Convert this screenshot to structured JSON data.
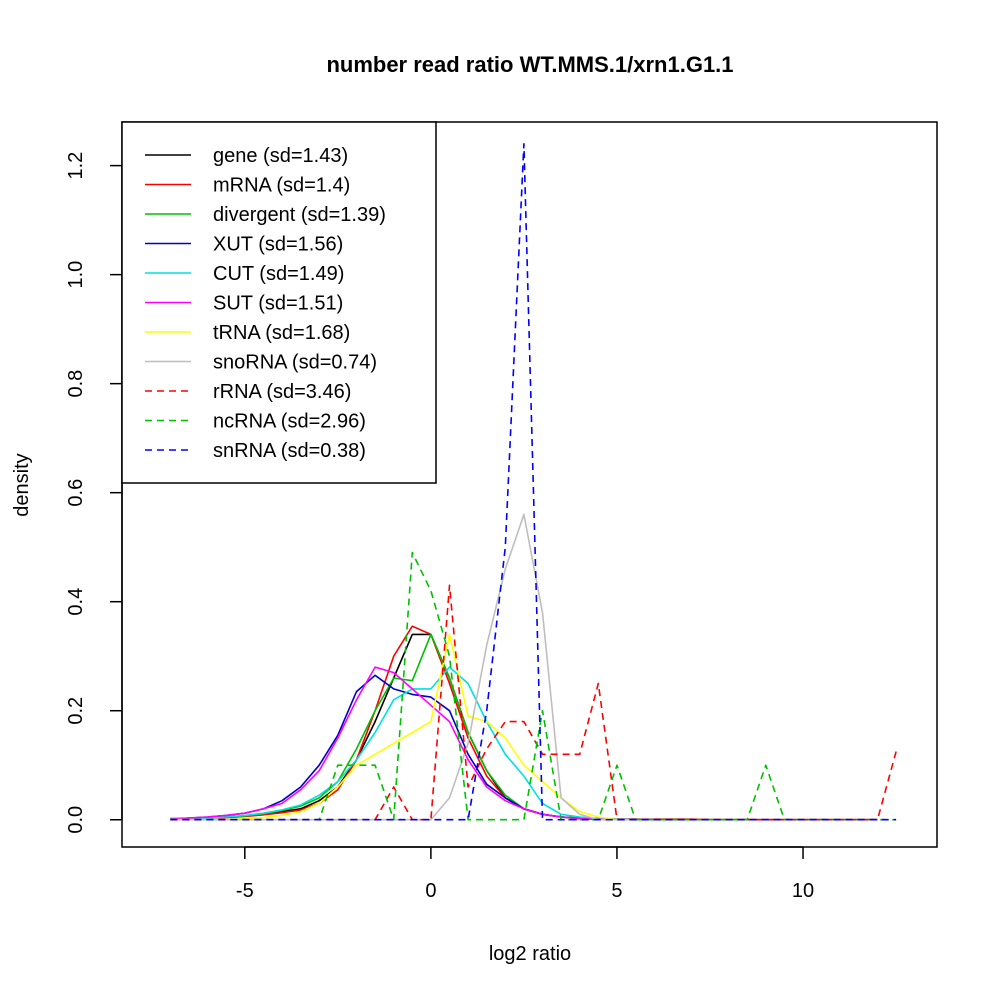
{
  "chart_data": {
    "type": "line",
    "title": "number read ratio WT.MMS.1/xrn1.G1.1",
    "xlabel": "log2 ratio",
    "ylabel": "density",
    "xlim": [
      -8.3,
      13.6
    ],
    "ylim": [
      -0.05,
      1.28
    ],
    "x_ticks": [
      -5,
      0,
      5,
      10
    ],
    "y_ticks": [
      0.0,
      0.2,
      0.4,
      0.6,
      0.8,
      1.0,
      1.2
    ],
    "x_tick_labels": [
      "-5",
      "0",
      "5",
      "10"
    ],
    "y_tick_labels": [
      "0.0",
      "0.2",
      "0.4",
      "0.6",
      "0.8",
      "1.0",
      "1.2"
    ],
    "grid": false,
    "legend_position": "top-left",
    "series": [
      {
        "name": "gene (sd=1.43)",
        "color": "#000000",
        "dash": "solid",
        "x": [
          -7,
          -6.5,
          -6,
          -5.5,
          -5,
          -4.5,
          -4,
          -3.5,
          -3,
          -2.5,
          -2,
          -1.5,
          -1,
          -0.5,
          0,
          0.5,
          1,
          1.5,
          2,
          2.5,
          3,
          3.5,
          4,
          4.5,
          5,
          5.5,
          6,
          6.5,
          7,
          7.5,
          8,
          8.5,
          9,
          9.5,
          10,
          10.5,
          11,
          11.5,
          12
        ],
        "y": [
          0.002,
          0.002,
          0.003,
          0.005,
          0.007,
          0.01,
          0.015,
          0.02,
          0.035,
          0.06,
          0.11,
          0.18,
          0.26,
          0.34,
          0.34,
          0.26,
          0.16,
          0.09,
          0.04,
          0.02,
          0.01,
          0.005,
          0.003,
          0.002,
          0.001,
          0.001,
          0,
          0,
          0,
          0,
          0,
          0,
          0,
          0,
          0,
          0,
          0,
          0,
          0
        ]
      },
      {
        "name": "mRNA (sd=1.4)",
        "color": "#ff0000",
        "dash": "solid",
        "x": [
          -7,
          -6.5,
          -6,
          -5.5,
          -5,
          -4.5,
          -4,
          -3.5,
          -3,
          -2.5,
          -2,
          -1.5,
          -1,
          -0.5,
          0,
          0.5,
          1,
          1.5,
          2,
          2.5,
          3,
          3.5,
          4,
          4.5,
          5,
          5.5,
          6,
          6.5,
          7,
          7.5,
          8,
          8.5,
          9,
          9.5,
          10,
          10.5,
          11,
          11.5,
          12
        ],
        "y": [
          0.002,
          0.002,
          0.003,
          0.004,
          0.006,
          0.009,
          0.013,
          0.018,
          0.03,
          0.055,
          0.11,
          0.2,
          0.3,
          0.355,
          0.34,
          0.25,
          0.15,
          0.08,
          0.04,
          0.02,
          0.01,
          0.005,
          0.003,
          0.002,
          0.001,
          0.001,
          0.001,
          0.001,
          0.001,
          0,
          0,
          0,
          0,
          0,
          0,
          0,
          0,
          0,
          0
        ]
      },
      {
        "name": "divergent (sd=1.39)",
        "color": "#00c000",
        "dash": "solid",
        "x": [
          -7,
          -6.5,
          -6,
          -5.5,
          -5,
          -4.5,
          -4,
          -3.5,
          -3,
          -2.5,
          -2,
          -1.5,
          -1,
          -0.5,
          0,
          0.5,
          1,
          1.5,
          2,
          2.5,
          3,
          3.5,
          4,
          4.5,
          5,
          5.5,
          6,
          6.5,
          7
        ],
        "y": [
          0.002,
          0.002,
          0.003,
          0.005,
          0.007,
          0.011,
          0.017,
          0.025,
          0.04,
          0.07,
          0.13,
          0.2,
          0.26,
          0.255,
          0.34,
          0.26,
          0.16,
          0.09,
          0.045,
          0.02,
          0.01,
          0.005,
          0.003,
          0.002,
          0.001,
          0,
          0,
          0,
          0
        ]
      },
      {
        "name": "XUT (sd=1.56)",
        "color": "#0000c8",
        "dash": "solid",
        "x": [
          -7,
          -6.5,
          -6,
          -5.5,
          -5,
          -4.5,
          -4,
          -3.5,
          -3,
          -2.5,
          -2,
          -1.5,
          -1,
          -0.5,
          0,
          0.5,
          1,
          1.5,
          2,
          2.5,
          3,
          3.5,
          4,
          4.5,
          5,
          5.5,
          6
        ],
        "y": [
          0.001,
          0.003,
          0.005,
          0.008,
          0.012,
          0.02,
          0.035,
          0.06,
          0.1,
          0.155,
          0.235,
          0.265,
          0.24,
          0.23,
          0.225,
          0.2,
          0.12,
          0.065,
          0.04,
          0.02,
          0.01,
          0.005,
          0.002,
          0.001,
          0,
          0,
          0
        ]
      },
      {
        "name": "CUT (sd=1.49)",
        "color": "#00e0e0",
        "dash": "solid",
        "x": [
          -7,
          -6.5,
          -6,
          -5.5,
          -5,
          -4.5,
          -4,
          -3.5,
          -3,
          -2.5,
          -2,
          -1.5,
          -1,
          -0.5,
          0,
          0.5,
          1,
          1.5,
          2,
          2.5,
          3,
          3.5,
          4,
          4.5,
          5,
          5.5,
          6
        ],
        "y": [
          0.001,
          0.002,
          0.003,
          0.005,
          0.008,
          0.012,
          0.018,
          0.027,
          0.045,
          0.07,
          0.11,
          0.16,
          0.22,
          0.24,
          0.24,
          0.28,
          0.25,
          0.18,
          0.12,
          0.08,
          0.03,
          0.01,
          0.005,
          0.002,
          0.001,
          0,
          0
        ]
      },
      {
        "name": "SUT (sd=1.51)",
        "color": "#ff00ff",
        "dash": "solid",
        "x": [
          -7,
          -6.5,
          -6,
          -5.5,
          -5,
          -4.5,
          -4,
          -3.5,
          -3,
          -2.5,
          -2,
          -1.5,
          -1,
          -0.5,
          0,
          0.5,
          1,
          1.5,
          2,
          2.5,
          3,
          3.5,
          4,
          4.5,
          5,
          5.5,
          6
        ],
        "y": [
          0.001,
          0.003,
          0.005,
          0.008,
          0.012,
          0.02,
          0.03,
          0.055,
          0.09,
          0.15,
          0.22,
          0.28,
          0.27,
          0.24,
          0.21,
          0.18,
          0.11,
          0.06,
          0.035,
          0.02,
          0.01,
          0.005,
          0.002,
          0.001,
          0,
          0,
          0
        ]
      },
      {
        "name": "tRNA (sd=1.68)",
        "color": "#ffff00",
        "dash": "solid",
        "x": [
          -7,
          -6.5,
          -6,
          -5.5,
          -5,
          -4.5,
          -4,
          -3.5,
          -3,
          -2.5,
          -2,
          -1.5,
          -1,
          -0.5,
          0,
          0.5,
          1,
          1.5,
          2,
          2.5,
          3,
          3.5,
          4,
          4.5,
          5
        ],
        "y": [
          0,
          0,
          0,
          0,
          0.002,
          0.004,
          0.008,
          0.015,
          0.03,
          0.06,
          0.1,
          0.12,
          0.14,
          0.16,
          0.18,
          0.34,
          0.19,
          0.18,
          0.15,
          0.1,
          0.07,
          0.04,
          0.015,
          0.005,
          0
        ]
      },
      {
        "name": "snoRNA (sd=0.74)",
        "color": "#bebebe",
        "dash": "solid",
        "x": [
          -7,
          -6.5,
          -6,
          -5.5,
          -5,
          -4.5,
          -4,
          -3.5,
          -3,
          -2.5,
          -2,
          -1.5,
          -1,
          -0.5,
          0,
          0.5,
          1,
          1.5,
          2,
          2.5,
          3,
          3.5,
          4,
          4.5,
          5,
          5.5,
          6
        ],
        "y": [
          0,
          0,
          0,
          0,
          0,
          0,
          0,
          0,
          0,
          0,
          0,
          0,
          0,
          0,
          0,
          0.04,
          0.14,
          0.32,
          0.46,
          0.56,
          0.38,
          0.04,
          0.01,
          0,
          0,
          0,
          0
        ]
      },
      {
        "name": "rRNA (sd=3.46)",
        "color": "#ff0000",
        "dash": "dashed",
        "x": [
          -7,
          -6.5,
          -6,
          -5.5,
          -5,
          -4.5,
          -4,
          -3.5,
          -3,
          -2.5,
          -2,
          -1.5,
          -1,
          -0.5,
          0,
          0.5,
          1,
          1.5,
          2,
          2.5,
          3,
          3.5,
          4,
          4.5,
          5,
          5.5,
          6,
          6.5,
          7,
          7.5,
          8,
          8.5,
          9,
          9.5,
          10,
          10.5,
          11,
          11.5,
          12,
          12.5
        ],
        "y": [
          0,
          0,
          0,
          0,
          0,
          0,
          0,
          0,
          0,
          0,
          0,
          0,
          0.06,
          0,
          0,
          0.43,
          0.06,
          0.13,
          0.18,
          0.18,
          0.12,
          0.12,
          0.12,
          0.25,
          0,
          0,
          0,
          0,
          0,
          0,
          0,
          0,
          0,
          0,
          0,
          0,
          0,
          0,
          0,
          0.125
        ]
      },
      {
        "name": "ncRNA (sd=2.96)",
        "color": "#00c000",
        "dash": "dashed",
        "x": [
          -7,
          -6.5,
          -6,
          -5.5,
          -5,
          -4.5,
          -4,
          -3.5,
          -3,
          -2.5,
          -2,
          -1.5,
          -1,
          -0.5,
          0,
          0.5,
          1,
          1.5,
          2,
          2.5,
          3,
          3.5,
          4,
          4.5,
          5,
          5.5,
          6,
          6.5,
          7,
          7.5,
          8,
          8.5,
          9,
          9.5,
          10,
          10.5,
          11,
          11.5,
          12,
          12.5
        ],
        "y": [
          0,
          0,
          0,
          0,
          0,
          0,
          0,
          0,
          0,
          0.1,
          0.1,
          0.1,
          0,
          0.49,
          0.42,
          0.3,
          0,
          0,
          0,
          0,
          0.2,
          0,
          0,
          0,
          0.1,
          0,
          0,
          0,
          0,
          0,
          0,
          0,
          0.1,
          0,
          0,
          0,
          0,
          0,
          0,
          0
        ]
      },
      {
        "name": "snRNA (sd=0.38)",
        "color": "#0000ff",
        "dash": "dashed",
        "x": [
          -7,
          -6.5,
          -6,
          -5.5,
          -5,
          -4.5,
          -4,
          -3.5,
          -3,
          -2.5,
          -2,
          -1.5,
          -1,
          -0.5,
          0,
          0.5,
          1,
          1.5,
          2,
          2.5,
          3,
          3.5,
          4,
          4.5,
          5,
          5.5,
          6,
          6.5,
          7,
          7.5,
          8,
          8.5,
          9,
          9.5,
          10,
          10.5,
          11,
          11.5,
          12,
          12.5
        ],
        "y": [
          0,
          0,
          0,
          0,
          0,
          0,
          0,
          0,
          0,
          0,
          0,
          0,
          0,
          0,
          0,
          0,
          0,
          0.2,
          0.5,
          1.24,
          0,
          0,
          0,
          0,
          0,
          0,
          0,
          0,
          0,
          0,
          0,
          0,
          0,
          0,
          0,
          0,
          0,
          0,
          0,
          0
        ]
      }
    ]
  }
}
